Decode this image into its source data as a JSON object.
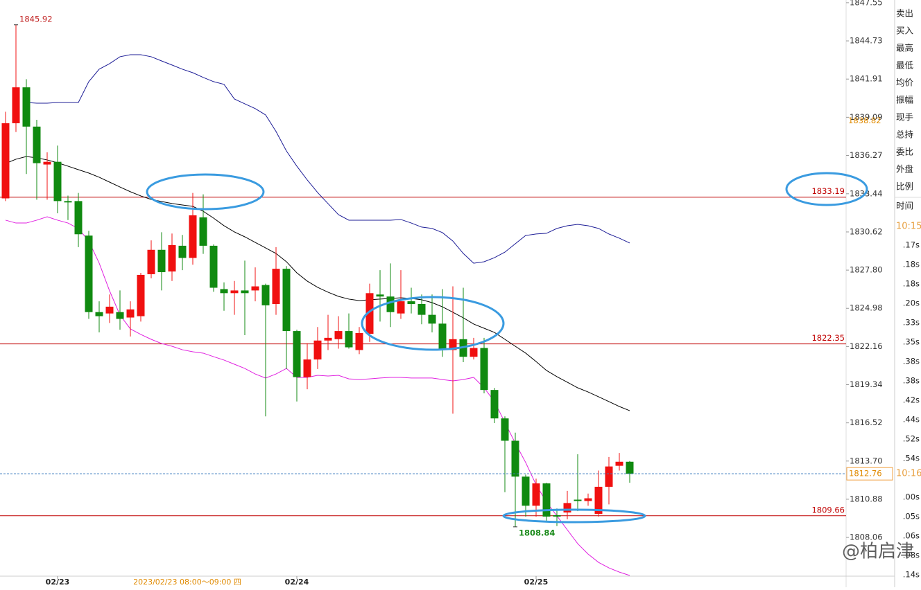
{
  "chart_data": {
    "type": "candlestick",
    "categories": [
      null,
      null,
      null,
      null,
      null,
      "02/23",
      null,
      null,
      null,
      null,
      null,
      null,
      null,
      null,
      null,
      null,
      null,
      null,
      null,
      null,
      null,
      null,
      null,
      null,
      null,
      null,
      null,
      null,
      "02/24",
      null,
      null,
      null,
      null,
      null,
      null,
      null,
      null,
      null,
      null,
      null,
      null,
      null,
      null,
      null,
      null,
      null,
      null,
      null,
      null,
      null,
      null,
      "02/25",
      null,
      null,
      null,
      null,
      null,
      null,
      null,
      null,
      null
    ],
    "open": [
      1833.1,
      1838.65,
      1841.3,
      1838.4,
      1835.6,
      1835.8,
      1832.9,
      1832.9,
      1830.35,
      1824.7,
      1824.6,
      1824.7,
      1824.3,
      1824.4,
      1827.5,
      1829.3,
      1827.7,
      1829.6,
      1828.7,
      1831.7,
      1829.6,
      1826.4,
      1826.1,
      1826.3,
      1826.3,
      1826.7,
      1825.3,
      1827.9,
      1823.3,
      1819.9,
      1821.2,
      1822.6,
      1822.7,
      1823.3,
      1821.9,
      1823.1,
      1826.0,
      1825.85,
      1824.6,
      1825.5,
      1825.3,
      1824.5,
      1823.85,
      1821.9,
      1822.7,
      1821.4,
      1822.05,
      1818.95,
      1816.85,
      1815.2,
      1812.55,
      1810.4,
      1812.05,
      1809.7,
      1809.9,
      1810.85,
      1810.75,
      1809.8,
      1811.8,
      1813.35,
      1813.65
    ],
    "high": [
      1839.5,
      1845.92,
      1841.9,
      1838.9,
      1836.5,
      1837.0,
      1833.3,
      1833.5,
      1830.7,
      1825.5,
      1826.0,
      1826.3,
      1825.5,
      1827.6,
      1830.0,
      1830.6,
      1830.5,
      1830.4,
      1833.5,
      1833.4,
      1829.7,
      1826.9,
      1827.0,
      1828.5,
      1828.0,
      1826.8,
      1829.5,
      1828.1,
      1823.4,
      1822.4,
      1823.6,
      1824.5,
      1824.4,
      1824.6,
      1823.6,
      1826.8,
      1827.8,
      1828.3,
      1827.8,
      1826.5,
      1826.0,
      1826.0,
      1826.4,
      1826.6,
      1826.5,
      1822.8,
      1822.8,
      1819.1,
      1817.0,
      1815.8,
      1812.7,
      1812.4,
      1812.1,
      1810.2,
      1811.5,
      1814.2,
      1811.3,
      1813.0,
      1814.0,
      1814.3,
      1813.7
    ],
    "low": [
      1832.9,
      1838.0,
      1834.9,
      1833.0,
      1833.0,
      1832.0,
      1831.5,
      1829.5,
      1824.2,
      1823.2,
      1823.9,
      1823.4,
      1822.9,
      1824.0,
      1827.2,
      1826.3,
      1827.0,
      1827.8,
      1828.2,
      1829.0,
      1826.2,
      1824.8,
      1824.5,
      1823.0,
      1825.5,
      1817.0,
      1824.5,
      1820.5,
      1818.1,
      1819.0,
      1820.5,
      1821.9,
      1822.0,
      1822.0,
      1821.6,
      1822.5,
      1824.0,
      1823.6,
      1824.2,
      1824.6,
      1823.8,
      1823.2,
      1821.4,
      1817.2,
      1821.0,
      1821.2,
      1818.7,
      1816.5,
      1811.4,
      1808.84,
      1809.6,
      1809.6,
      1809.3,
      1808.9,
      1809.4,
      1810.0,
      1810.4,
      1809.6,
      1810.5,
      1813.0,
      1812.1
    ],
    "close": [
      1838.65,
      1841.3,
      1838.4,
      1835.7,
      1835.8,
      1832.9,
      1832.8,
      1830.45,
      1824.7,
      1824.4,
      1825.1,
      1824.2,
      1824.9,
      1827.45,
      1829.3,
      1827.65,
      1829.65,
      1828.7,
      1831.85,
      1829.6,
      1826.5,
      1826.1,
      1826.3,
      1826.1,
      1826.6,
      1825.2,
      1827.9,
      1823.3,
      1819.9,
      1821.2,
      1822.6,
      1822.8,
      1823.3,
      1822.1,
      1823.15,
      1826.1,
      1825.85,
      1824.7,
      1825.5,
      1825.3,
      1824.5,
      1823.85,
      1821.9,
      1822.7,
      1821.4,
      1822.05,
      1818.95,
      1816.85,
      1815.2,
      1812.55,
      1810.4,
      1812.05,
      1809.6,
      1809.6,
      1810.6,
      1810.75,
      1810.95,
      1811.8,
      1813.3,
      1813.65,
      1812.76
    ],
    "up_color": "#f01010",
    "down_color": "#108a10",
    "overlays": [
      {
        "color": "#000000",
        "values": [
          1835.68,
          1835.99,
          1836.19,
          1836.09,
          1835.94,
          1835.73,
          1835.48,
          1835.22,
          1834.97,
          1834.66,
          1834.3,
          1833.94,
          1833.59,
          1833.28,
          1833.02,
          1832.87,
          1832.72,
          1832.61,
          1832.51,
          1832.15,
          1831.64,
          1831.08,
          1830.62,
          1830.26,
          1829.85,
          1829.44,
          1829.03,
          1828.42,
          1827.6,
          1826.99,
          1826.53,
          1826.17,
          1825.86,
          1825.66,
          1825.55,
          1825.61,
          1825.66,
          1825.71,
          1825.76,
          1825.71,
          1825.61,
          1825.4,
          1825.09,
          1824.69,
          1824.28,
          1823.82,
          1823.51,
          1823.2,
          1822.69,
          1822.18,
          1821.67,
          1821.05,
          1820.39,
          1819.93,
          1819.52,
          1819.11,
          1818.8,
          1818.45,
          1818.09,
          1817.73,
          1817.42
        ]
      },
      {
        "color": "#1c1c96",
        "values": [
          null,
          null,
          1840.18,
          1840.13,
          1840.13,
          1840.18,
          1840.18,
          1840.18,
          1841.72,
          1842.64,
          1843.05,
          1843.56,
          1843.71,
          1843.71,
          1843.56,
          1843.25,
          1842.95,
          1842.64,
          1842.38,
          1842.03,
          1841.72,
          1841.52,
          1840.44,
          1840.08,
          1839.73,
          1839.26,
          1838.04,
          1836.6,
          1835.48,
          1834.46,
          1833.53,
          1832.71,
          1831.9,
          1831.49,
          1831.49,
          1831.49,
          1831.49,
          1831.49,
          1831.54,
          1831.28,
          1830.98,
          1830.88,
          1830.57,
          1829.95,
          1829.03,
          1828.31,
          1828.42,
          1828.72,
          1829.13,
          1829.75,
          1830.36,
          1830.47,
          1830.52,
          1830.88,
          1831.08,
          1831.18,
          1831.08,
          1830.88,
          1830.47,
          1830.16,
          1829.8
        ]
      },
      {
        "color": "#e020e0",
        "values": [
          1831.49,
          1831.28,
          1831.28,
          1831.49,
          1831.74,
          1831.49,
          1831.28,
          1830.87,
          1829.95,
          1828.32,
          1826.27,
          1824.48,
          1823.46,
          1823.05,
          1822.69,
          1822.38,
          1822.18,
          1821.92,
          1821.77,
          1821.67,
          1821.41,
          1821.16,
          1820.85,
          1820.54,
          1820.13,
          1819.83,
          1820.13,
          1820.54,
          1819.88,
          1819.88,
          1820.03,
          1819.98,
          1820.03,
          1819.77,
          1819.72,
          1819.77,
          1819.83,
          1819.88,
          1819.88,
          1819.83,
          1819.83,
          1819.83,
          1819.72,
          1819.62,
          1819.72,
          1819.88,
          1819.11,
          1818.09,
          1816.55,
          1815.02,
          1813.59,
          1811.95,
          1810.67,
          1809.65,
          1808.62,
          1807.6,
          1806.83,
          1806.22,
          1805.81,
          1805.5,
          1805.25
        ]
      }
    ],
    "levels": [
      {
        "value": 1833.19,
        "color": "#c00000"
      },
      {
        "value": 1822.35,
        "color": "#c00000"
      },
      {
        "value": 1809.66,
        "color": "#c00000"
      }
    ],
    "current_price": 1812.76,
    "axis_marker": 1838.82,
    "high_label": 1845.92,
    "low_label": 1808.84,
    "crosshair_time": "2023/02/23 08:00～09:00 四",
    "ylim": [
      1805.2,
      1847.75
    ],
    "yticks": [
      1847.55,
      1844.73,
      1841.91,
      1839.09,
      1836.27,
      1833.44,
      1830.62,
      {
        "value": 1827.8,
        "label": "1827.80"
      },
      1824.98,
      1822.16,
      1819.34,
      1816.52,
      {
        "value": 1813.7,
        "label": "1813.70"
      },
      1810.88,
      1808.06
    ]
  },
  "panel": {
    "labels": [
      "卖出",
      "买入",
      "最高",
      "最低",
      "均价",
      "振幅",
      "现手",
      "总持",
      "委比",
      "外盘",
      "比例",
      "时间"
    ],
    "time": "10:15",
    "current_time": "10:16",
    "seconds": [
      ".17s",
      ".18s",
      ".18s",
      ".20s",
      ".33s",
      ".35s",
      ".38s",
      ".38s",
      ".42s",
      ".44s",
      ".52s",
      ".54s",
      ".00s",
      ".05s",
      ".06s",
      ".08s",
      ".14s"
    ]
  },
  "watermark": "@柏启津"
}
